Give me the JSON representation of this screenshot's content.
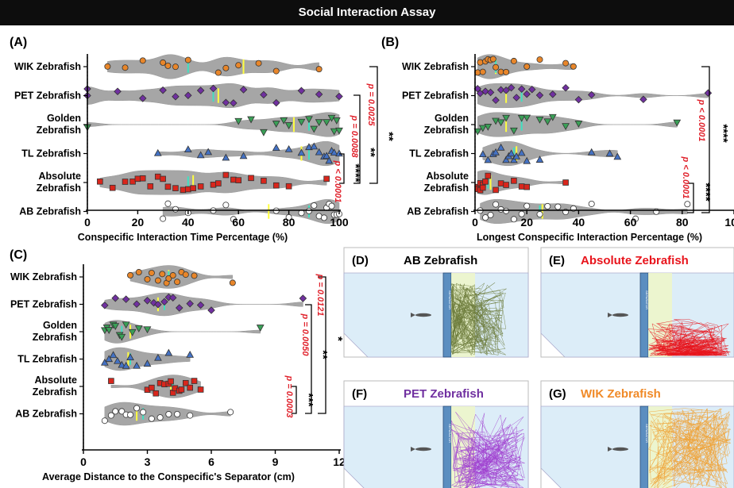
{
  "banner": "Social Interaction Assay",
  "colors": {
    "violin": "#a6a6a6",
    "pval": "#e0202a",
    "WIK": "#e8862a",
    "PET": "#7030a0",
    "Golden": "#3aa057",
    "TL": "#4472c4",
    "Absolute": "#d9261c",
    "AB": "#ffffff",
    "mean": "#ffff40",
    "median": "#40e0c0"
  },
  "chart_data": [
    {
      "panel": "(A)",
      "type": "violin",
      "title": "",
      "xlabel": "Conspecific Interaction Time Percentage (%)",
      "xlim": [
        0,
        100
      ],
      "xticks": [
        0,
        20,
        40,
        60,
        80,
        100
      ],
      "categories": [
        "WIK Zebrafish",
        "PET Zebrafish",
        "Golden\nZebrafish",
        "TL Zebrafish",
        "Absolute\nZebrafish",
        "AB Zebrafish"
      ],
      "series": [
        {
          "group": "WIK",
          "values": [
            8,
            15,
            22,
            30,
            32,
            35,
            40,
            52,
            55,
            60,
            68,
            75,
            92
          ]
        },
        {
          "group": "PET",
          "values": [
            0,
            0,
            12,
            22,
            30,
            35,
            40,
            45,
            50,
            55,
            58,
            62,
            70,
            75,
            85,
            92,
            100
          ]
        },
        {
          "group": "Golden",
          "values": [
            0,
            60,
            65,
            70,
            75,
            78,
            80,
            85,
            88,
            90,
            92,
            95,
            97,
            98,
            99,
            100
          ]
        },
        {
          "group": "TL",
          "values": [
            28,
            40,
            45,
            48,
            55,
            62,
            75,
            80,
            85,
            88,
            90,
            92,
            94,
            95,
            96,
            97,
            98,
            100
          ]
        },
        {
          "group": "Absolute",
          "values": [
            5,
            10,
            15,
            18,
            20,
            22,
            25,
            28,
            30,
            32,
            35,
            38,
            40,
            42,
            45,
            50,
            52,
            55,
            58,
            60,
            65,
            70,
            75,
            80,
            95
          ]
        },
        {
          "group": "AB",
          "values": [
            30,
            32,
            35,
            40,
            50,
            55,
            58,
            75,
            80,
            85,
            88,
            90,
            92,
            94,
            95,
            96,
            97,
            98,
            99,
            100
          ]
        }
      ],
      "means": [
        62,
        52,
        82,
        85,
        42,
        72
      ],
      "annotations": [
        {
          "text": "p = 0.0025",
          "type": "p"
        },
        {
          "text": "p = 0.0088",
          "type": "p"
        },
        {
          "text": "p < 0.0001",
          "type": "p"
        },
        {
          "text": "**",
          "type": "star"
        },
        {
          "text": "**",
          "type": "star"
        },
        {
          "text": "****",
          "type": "star"
        }
      ]
    },
    {
      "panel": "(B)",
      "type": "violin",
      "title": "",
      "xlabel": "Longest Conspecific Interaction Percentage (%)",
      "xlim": [
        0,
        100
      ],
      "xticks": [
        0,
        20,
        40,
        60,
        80,
        100
      ],
      "categories": [
        "WIK Zebrafish",
        "PET Zebrafish",
        "Golden\nZebrafish",
        "TL Zebrafish",
        "Absolute\nZebrafish",
        "AB Zebrafish"
      ],
      "series": [
        {
          "group": "WIK",
          "values": [
            1,
            2,
            3,
            4,
            5,
            6,
            7,
            8,
            10,
            12,
            15,
            20,
            25,
            35,
            38
          ]
        },
        {
          "group": "PET",
          "values": [
            1,
            2,
            4,
            6,
            8,
            10,
            12,
            14,
            16,
            18,
            20,
            22,
            25,
            30,
            35,
            40,
            45,
            65,
            90
          ]
        },
        {
          "group": "Golden",
          "values": [
            1,
            3,
            5,
            8,
            10,
            12,
            15,
            18,
            20,
            25,
            28,
            30,
            35,
            40,
            78
          ]
        },
        {
          "group": "TL",
          "values": [
            3,
            5,
            7,
            8,
            10,
            12,
            13,
            14,
            15,
            16,
            18,
            20,
            25,
            45,
            52,
            55
          ]
        },
        {
          "group": "Absolute",
          "values": [
            1,
            1,
            2,
            2,
            3,
            3,
            4,
            5,
            8,
            10,
            12,
            15,
            18,
            20,
            35
          ]
        },
        {
          "group": "AB",
          "values": [
            2,
            4,
            6,
            8,
            10,
            12,
            15,
            18,
            20,
            25,
            28,
            32,
            35,
            38,
            45,
            62,
            70,
            82
          ]
        }
      ],
      "means": [
        8,
        12,
        12,
        16,
        6,
        26
      ],
      "annotations": [
        {
          "text": "p < 0.0001",
          "type": "p"
        },
        {
          "text": "p < 0.0001",
          "type": "p"
        },
        {
          "text": "****",
          "type": "star"
        },
        {
          "text": "****",
          "type": "star"
        }
      ]
    },
    {
      "panel": "(C)",
      "type": "violin",
      "title": "",
      "xlabel": "Average Distance to the Conspecific's Separator (cm)",
      "xlim": [
        0,
        12
      ],
      "xticks": [
        0,
        3,
        6,
        9,
        12
      ],
      "categories": [
        "WIK Zebrafish",
        "PET Zebrafish",
        "Golden\nZebrafish",
        "TL Zebrafish",
        "Absolute\nZebrafish",
        "AB Zebrafish"
      ],
      "series": [
        {
          "group": "WIK",
          "values": [
            2.2,
            2.6,
            3.0,
            3.2,
            3.5,
            3.7,
            3.9,
            4.0,
            4.2,
            4.4,
            4.6,
            4.8,
            5.2,
            7.0
          ]
        },
        {
          "group": "PET",
          "values": [
            1.0,
            1.5,
            2.0,
            2.5,
            3.0,
            3.3,
            3.5,
            3.8,
            4.0,
            4.2,
            4.5,
            5.0,
            5.5,
            6.0,
            10.3
          ]
        },
        {
          "group": "Golden",
          "values": [
            1.0,
            1.1,
            1.2,
            1.4,
            1.5,
            1.7,
            1.8,
            2.0,
            2.3,
            2.6,
            3.0,
            8.3
          ]
        },
        {
          "group": "TL",
          "values": [
            1.0,
            1.2,
            1.4,
            1.6,
            1.8,
            2.0,
            2.2,
            2.5,
            3.0,
            3.5,
            4.0,
            5.0
          ]
        },
        {
          "group": "Absolute",
          "values": [
            1.3,
            3.0,
            3.2,
            3.4,
            3.6,
            3.8,
            4.0,
            4.1,
            4.2,
            4.3,
            4.5,
            4.6,
            4.8,
            5.0,
            5.2,
            5.5
          ]
        },
        {
          "group": "AB",
          "values": [
            1.0,
            1.3,
            1.5,
            1.8,
            2.0,
            2.2,
            2.5,
            2.8,
            3.2,
            3.6,
            4.0,
            4.4,
            5.0,
            6.9
          ]
        }
      ],
      "means": [
        4.0,
        3.5,
        2.2,
        2.1,
        4.1,
        2.5
      ],
      "annotations": [
        {
          "text": "p = 0.0121",
          "type": "p"
        },
        {
          "text": "p = 0.0050",
          "type": "p"
        },
        {
          "text": "p = 0.0003",
          "type": "p"
        },
        {
          "text": "*",
          "type": "star"
        },
        {
          "text": "**",
          "type": "star"
        },
        {
          "text": "***",
          "type": "star"
        }
      ]
    }
  ],
  "tracks": [
    {
      "label": "(D)",
      "title": "AB Zebrafish",
      "title_color": "#000000",
      "separator": "SEPARATOR",
      "trace_color": "#6b7a3a",
      "mode": "near-mid"
    },
    {
      "label": "(E)",
      "title": "Absolute Zebrafish",
      "title_color": "#e8141c",
      "separator": "SEPARATOR",
      "trace_color": "#e8141c",
      "mode": "bottom"
    },
    {
      "label": "(F)",
      "title": "PET Zebrafish",
      "title_color": "#7030a0",
      "separator": "SEPARATOR",
      "trace_color": "#a040d0",
      "mode": "spread-bottom"
    },
    {
      "label": "(G)",
      "title": "WIK Zebrafish",
      "title_color": "#f08a28",
      "separator": "SEPARATOR",
      "trace_color": "#f0a030",
      "mode": "full"
    }
  ]
}
